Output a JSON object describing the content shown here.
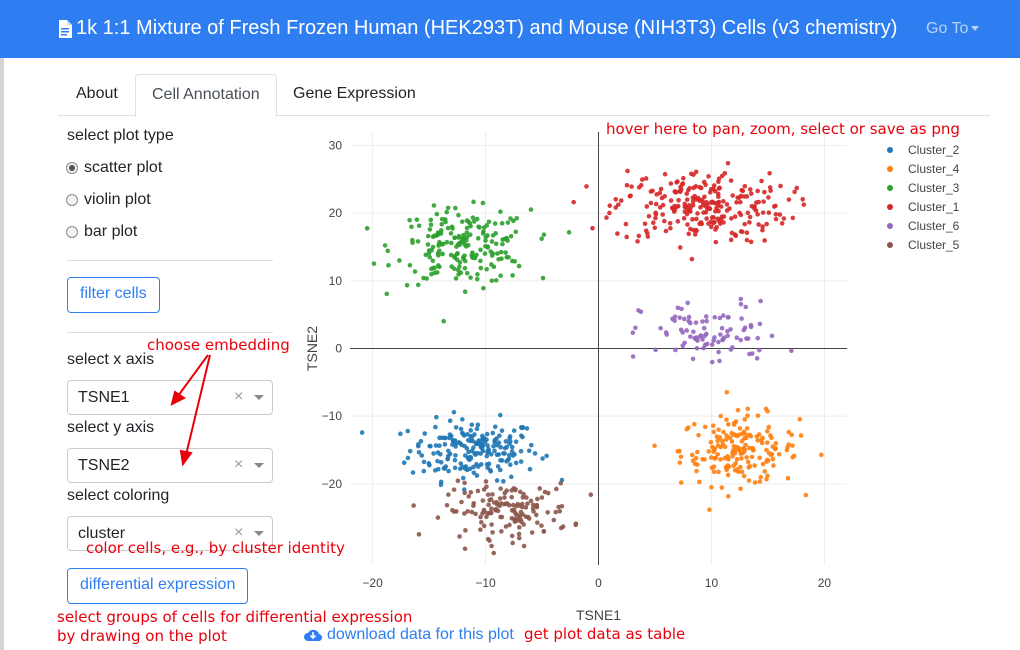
{
  "header": {
    "title": "1k 1:1 Mixture of Fresh Frozen Human (HEK293T) and Mouse (NIH3T3) Cells (v3 chemistry)",
    "goto_label": "Go To"
  },
  "tabs": [
    {
      "label": "About"
    },
    {
      "label": "Cell Annotation",
      "active": true
    },
    {
      "label": "Gene Expression"
    }
  ],
  "sidebar": {
    "plot_type_label": "select plot type",
    "plot_types": [
      "scatter plot",
      "violin plot",
      "bar plot"
    ],
    "selected_plot_type": "scatter plot",
    "filter_button": "filter cells",
    "x_axis_label": "select x axis",
    "x_axis_value": "TSNE1",
    "y_axis_label": "select y axis",
    "y_axis_value": "TSNE2",
    "coloring_label": "select coloring",
    "coloring_value": "cluster",
    "diff_expr_button": "differential expression",
    "download_link": "download data for this plot",
    "clear_icon": "×"
  },
  "annotations": {
    "hover": "hover here to pan, zoom, select or save as png",
    "embedding": "choose embedding",
    "color": "color cells, e.g., by cluster identity",
    "select_groups_1": "select groups of cells for differential expression",
    "select_groups_2": "by drawing on the plot",
    "table": "get plot data as table",
    "color_hex": "#e8000b"
  },
  "chart_data": {
    "type": "scatter",
    "xlabel": "TSNE1",
    "ylabel": "TSNE2",
    "xlim": [
      -22,
      22
    ],
    "ylim": [
      -32,
      32
    ],
    "xticks": [
      -20,
      -10,
      0,
      10,
      20
    ],
    "yticks": [
      -20,
      -10,
      0,
      10,
      20,
      30
    ],
    "grid": true,
    "legend_position": "top-right",
    "series": [
      {
        "name": "Cluster_2",
        "color": "#1f77b4",
        "cx": -11,
        "cy": -15,
        "sx": 4.6,
        "sy": 3.6,
        "n": 200
      },
      {
        "name": "Cluster_4",
        "color": "#ff7f0e",
        "cx": 12.5,
        "cy": -15,
        "sx": 4.2,
        "sy": 4.2,
        "n": 180
      },
      {
        "name": "Cluster_3",
        "color": "#2ca02c",
        "cx": -12,
        "cy": 15,
        "sx": 4.8,
        "sy": 4.4,
        "n": 200
      },
      {
        "name": "Cluster_1",
        "color": "#d62728",
        "cx": 9,
        "cy": 21,
        "sx": 6.2,
        "sy": 4.4,
        "n": 250
      },
      {
        "name": "Cluster_6",
        "color": "#9467bd",
        "cx": 10,
        "cy": 2,
        "sx": 5,
        "sy": 4,
        "n": 90
      },
      {
        "name": "Cluster_5",
        "color": "#8c564b",
        "cx": -8,
        "cy": -24,
        "sx": 4.5,
        "sy": 3.2,
        "n": 150
      }
    ]
  }
}
